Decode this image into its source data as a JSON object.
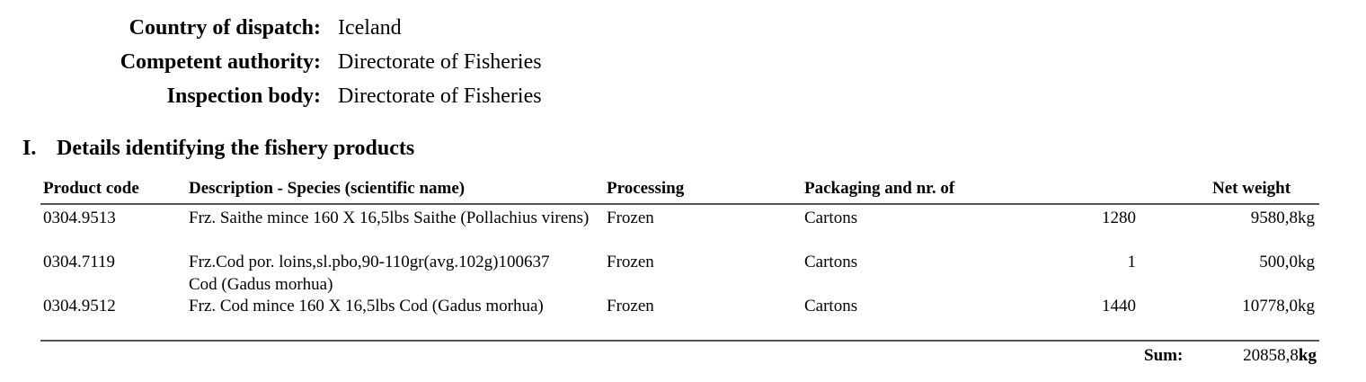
{
  "header": {
    "fields": [
      {
        "label": "Country of dispatch:",
        "value": "Iceland"
      },
      {
        "label": "Competent authority:",
        "value": "Directorate of Fisheries"
      },
      {
        "label": "Inspection body:",
        "value": "Directorate of Fisheries"
      }
    ]
  },
  "section": {
    "number": "I.",
    "title": "Details identifying the fishery products"
  },
  "table": {
    "columns": [
      "Product code",
      "Description - Species (scientific name)",
      "Processing",
      "Packaging and nr. of",
      "Net weight"
    ],
    "rows": [
      {
        "code": "0304.9513",
        "description": "Frz. Saithe mince 160 X 16,5lbs Saithe (Pollachius virens)",
        "processing": "Frozen",
        "packaging": "Cartons",
        "count": "1280",
        "weight": "9580,8kg"
      },
      {
        "code": "0304.7119",
        "description": "Frz.Cod por. loins,sl.pbo,90-110gr(avg.102g)100637 Cod (Gadus morhua)",
        "processing": "Frozen",
        "packaging": "Cartons",
        "count": "1",
        "weight": "500,0kg"
      },
      {
        "code": "0304.9512",
        "description": "Frz. Cod mince 160 X 16,5lbs Cod (Gadus morhua)",
        "processing": "Frozen",
        "packaging": "Cartons",
        "count": "1440",
        "weight": "10778,0kg"
      }
    ],
    "sum": {
      "label": "Sum:",
      "value": "20858,8",
      "unit": "kg"
    }
  }
}
